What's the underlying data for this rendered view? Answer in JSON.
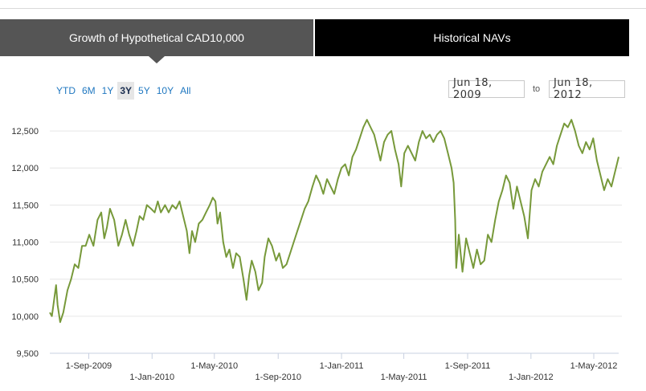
{
  "tabs": [
    {
      "label": "Growth of Hypothetical CAD10,000",
      "active": true
    },
    {
      "label": "Historical NAVs",
      "active": false
    }
  ],
  "range_buttons": [
    "YTD",
    "6M",
    "1Y",
    "3Y",
    "5Y",
    "10Y",
    "All"
  ],
  "selected_range": "3Y",
  "date_range": {
    "from": "Jun 18, 2009",
    "to_label": "to",
    "to": "Jun 18, 2012"
  },
  "colors": {
    "line": "#77993a",
    "active_tab": "#555555",
    "inactive_tab": "#000000",
    "link": "#1f77c0"
  },
  "chart_data": {
    "type": "line",
    "title": "",
    "xlabel": "",
    "ylabel": "",
    "ylim": [
      9500,
      12750
    ],
    "xlim": [
      "2009-06-18",
      "2012-06-18"
    ],
    "grid": true,
    "y_ticks": [
      "9,500",
      "10,000",
      "10,500",
      "11,000",
      "11,500",
      "12,000",
      "12,500"
    ],
    "y_tick_values": [
      9500,
      10000,
      10500,
      11000,
      11500,
      12000,
      12500
    ],
    "x_ticks": [
      {
        "date": "2009-09-01",
        "label": "1-Sep-2009"
      },
      {
        "date": "2010-01-01",
        "label": "1-Jan-2010"
      },
      {
        "date": "2010-05-01",
        "label": "1-May-2010"
      },
      {
        "date": "2010-09-01",
        "label": "1-Sep-2010"
      },
      {
        "date": "2011-01-01",
        "label": "1-Jan-2011"
      },
      {
        "date": "2011-05-01",
        "label": "1-May-2011"
      },
      {
        "date": "2011-09-01",
        "label": "1-Sep-2011"
      },
      {
        "date": "2012-01-01",
        "label": "1-Jan-2012"
      },
      {
        "date": "2012-05-01",
        "label": "1-May-2012"
      }
    ],
    "series": [
      {
        "points": [
          [
            "2009-06-18",
            10050
          ],
          [
            "2009-06-22",
            10000
          ],
          [
            "2009-06-30",
            10420
          ],
          [
            "2009-07-03",
            10150
          ],
          [
            "2009-07-08",
            9920
          ],
          [
            "2009-07-14",
            10050
          ],
          [
            "2009-07-22",
            10350
          ],
          [
            "2009-07-29",
            10500
          ],
          [
            "2009-08-05",
            10700
          ],
          [
            "2009-08-12",
            10650
          ],
          [
            "2009-08-19",
            10950
          ],
          [
            "2009-08-26",
            10950
          ],
          [
            "2009-09-02",
            11100
          ],
          [
            "2009-09-10",
            10950
          ],
          [
            "2009-09-18",
            11300
          ],
          [
            "2009-09-25",
            11400
          ],
          [
            "2009-10-01",
            11050
          ],
          [
            "2009-10-06",
            11200
          ],
          [
            "2009-10-12",
            11450
          ],
          [
            "2009-10-20",
            11300
          ],
          [
            "2009-10-28",
            10950
          ],
          [
            "2009-11-04",
            11100
          ],
          [
            "2009-11-11",
            11300
          ],
          [
            "2009-11-18",
            11100
          ],
          [
            "2009-11-25",
            10950
          ],
          [
            "2009-12-02",
            11150
          ],
          [
            "2009-12-08",
            11350
          ],
          [
            "2009-12-15",
            11300
          ],
          [
            "2009-12-22",
            11500
          ],
          [
            "2009-12-30",
            11450
          ],
          [
            "2010-01-06",
            11400
          ],
          [
            "2010-01-12",
            11550
          ],
          [
            "2010-01-18",
            11400
          ],
          [
            "2010-01-26",
            11500
          ],
          [
            "2010-02-02",
            11400
          ],
          [
            "2010-02-09",
            11500
          ],
          [
            "2010-02-16",
            11450
          ],
          [
            "2010-02-23",
            11550
          ],
          [
            "2010-03-02",
            11350
          ],
          [
            "2010-03-09",
            11150
          ],
          [
            "2010-03-14",
            10850
          ],
          [
            "2010-03-19",
            11150
          ],
          [
            "2010-03-25",
            11000
          ],
          [
            "2010-04-01",
            11250
          ],
          [
            "2010-04-08",
            11300
          ],
          [
            "2010-04-15",
            11400
          ],
          [
            "2010-04-22",
            11500
          ],
          [
            "2010-04-28",
            11600
          ],
          [
            "2010-05-03",
            11550
          ],
          [
            "2010-05-07",
            11250
          ],
          [
            "2010-05-12",
            11400
          ],
          [
            "2010-05-18",
            11000
          ],
          [
            "2010-05-24",
            10800
          ],
          [
            "2010-05-30",
            10900
          ],
          [
            "2010-06-06",
            10650
          ],
          [
            "2010-06-12",
            10850
          ],
          [
            "2010-06-19",
            10800
          ],
          [
            "2010-06-26",
            10500
          ],
          [
            "2010-07-02",
            10220
          ],
          [
            "2010-07-07",
            10550
          ],
          [
            "2010-07-12",
            10750
          ],
          [
            "2010-07-19",
            10600
          ],
          [
            "2010-07-25",
            10350
          ],
          [
            "2010-08-01",
            10450
          ],
          [
            "2010-08-06",
            10800
          ],
          [
            "2010-08-13",
            11050
          ],
          [
            "2010-08-20",
            10950
          ],
          [
            "2010-08-28",
            10750
          ],
          [
            "2010-09-03",
            10850
          ],
          [
            "2010-09-10",
            10650
          ],
          [
            "2010-09-17",
            10700
          ],
          [
            "2010-09-24",
            10850
          ],
          [
            "2010-10-01",
            11000
          ],
          [
            "2010-10-08",
            11150
          ],
          [
            "2010-10-15",
            11300
          ],
          [
            "2010-10-22",
            11450
          ],
          [
            "2010-10-29",
            11550
          ],
          [
            "2010-11-06",
            11750
          ],
          [
            "2010-11-13",
            11900
          ],
          [
            "2010-11-20",
            11800
          ],
          [
            "2010-11-27",
            11650
          ],
          [
            "2010-12-04",
            11850
          ],
          [
            "2010-12-11",
            11750
          ],
          [
            "2010-12-18",
            11650
          ],
          [
            "2010-12-25",
            11850
          ],
          [
            "2011-01-01",
            12000
          ],
          [
            "2011-01-08",
            12050
          ],
          [
            "2011-01-15",
            11900
          ],
          [
            "2011-01-22",
            12150
          ],
          [
            "2011-01-29",
            12250
          ],
          [
            "2011-02-05",
            12400
          ],
          [
            "2011-02-12",
            12550
          ],
          [
            "2011-02-19",
            12650
          ],
          [
            "2011-02-26",
            12550
          ],
          [
            "2011-03-05",
            12450
          ],
          [
            "2011-03-12",
            12250
          ],
          [
            "2011-03-17",
            12100
          ],
          [
            "2011-03-24",
            12350
          ],
          [
            "2011-03-31",
            12450
          ],
          [
            "2011-04-07",
            12500
          ],
          [
            "2011-04-14",
            12250
          ],
          [
            "2011-04-21",
            12050
          ],
          [
            "2011-04-26",
            11750
          ],
          [
            "2011-05-02",
            12200
          ],
          [
            "2011-05-09",
            12300
          ],
          [
            "2011-05-16",
            12200
          ],
          [
            "2011-05-23",
            12100
          ],
          [
            "2011-05-30",
            12350
          ],
          [
            "2011-06-06",
            12500
          ],
          [
            "2011-06-13",
            12400
          ],
          [
            "2011-06-20",
            12450
          ],
          [
            "2011-06-27",
            12350
          ],
          [
            "2011-07-04",
            12450
          ],
          [
            "2011-07-11",
            12500
          ],
          [
            "2011-07-18",
            12400
          ],
          [
            "2011-07-25",
            12200
          ],
          [
            "2011-08-01",
            12000
          ],
          [
            "2011-08-05",
            11800
          ],
          [
            "2011-08-08",
            11300
          ],
          [
            "2011-08-10",
            10650
          ],
          [
            "2011-08-15",
            11100
          ],
          [
            "2011-08-22",
            10600
          ],
          [
            "2011-08-29",
            11050
          ],
          [
            "2011-09-05",
            10850
          ],
          [
            "2011-09-12",
            10650
          ],
          [
            "2011-09-19",
            10900
          ],
          [
            "2011-09-26",
            10700
          ],
          [
            "2011-10-03",
            10750
          ],
          [
            "2011-10-10",
            11100
          ],
          [
            "2011-10-17",
            11000
          ],
          [
            "2011-10-24",
            11300
          ],
          [
            "2011-10-31",
            11550
          ],
          [
            "2011-11-07",
            11700
          ],
          [
            "2011-11-14",
            11900
          ],
          [
            "2011-11-21",
            11800
          ],
          [
            "2011-11-28",
            11450
          ],
          [
            "2011-12-05",
            11750
          ],
          [
            "2011-12-12",
            11550
          ],
          [
            "2011-12-19",
            11350
          ],
          [
            "2011-12-26",
            11050
          ],
          [
            "2012-01-02",
            11700
          ],
          [
            "2012-01-09",
            11850
          ],
          [
            "2012-01-16",
            11750
          ],
          [
            "2012-01-23",
            11950
          ],
          [
            "2012-01-30",
            12050
          ],
          [
            "2012-02-06",
            12150
          ],
          [
            "2012-02-13",
            12050
          ],
          [
            "2012-02-20",
            12300
          ],
          [
            "2012-02-27",
            12450
          ],
          [
            "2012-03-05",
            12600
          ],
          [
            "2012-03-12",
            12550
          ],
          [
            "2012-03-19",
            12650
          ],
          [
            "2012-03-26",
            12500
          ],
          [
            "2012-04-02",
            12300
          ],
          [
            "2012-04-09",
            12200
          ],
          [
            "2012-04-16",
            12350
          ],
          [
            "2012-04-23",
            12250
          ],
          [
            "2012-04-30",
            12400
          ],
          [
            "2012-05-07",
            12100
          ],
          [
            "2012-05-14",
            11900
          ],
          [
            "2012-05-21",
            11700
          ],
          [
            "2012-05-28",
            11850
          ],
          [
            "2012-06-04",
            11750
          ],
          [
            "2012-06-11",
            11950
          ],
          [
            "2012-06-18",
            12150
          ]
        ]
      }
    ]
  }
}
